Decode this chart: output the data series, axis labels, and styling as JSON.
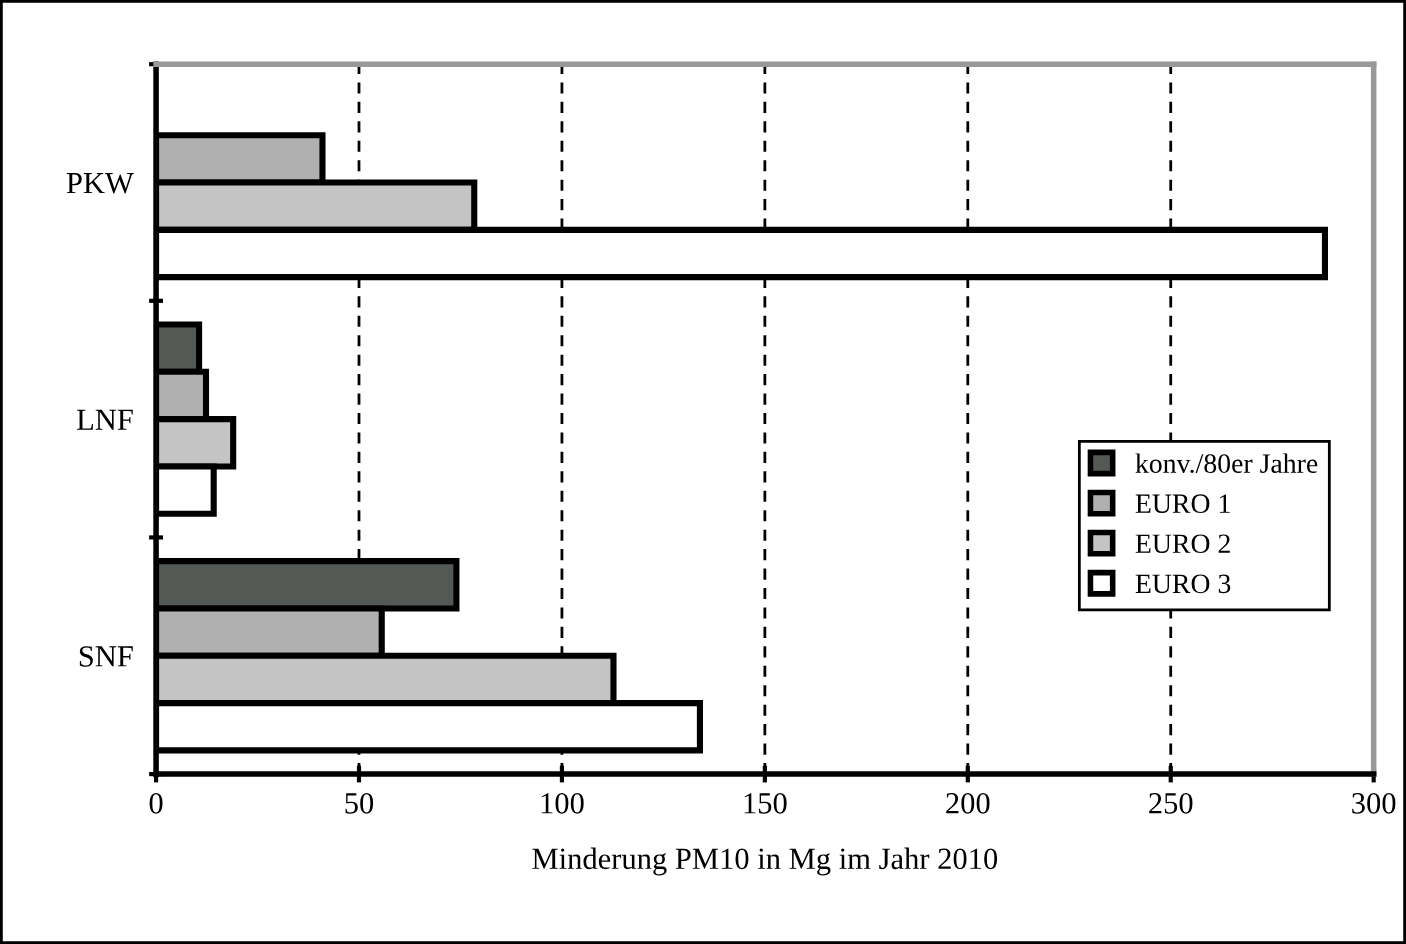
{
  "chart_data": {
    "type": "bar",
    "orientation": "horizontal",
    "categories": [
      "PKW",
      "LNF",
      "SNF"
    ],
    "xlabel": "Minderung PM10 in Mg im Jahr 2010",
    "xlim": [
      0,
      300
    ],
    "xticks": [
      0,
      50,
      100,
      150,
      200,
      250,
      300
    ],
    "grid": "x",
    "legend": "right",
    "series": [
      {
        "name": "konv./80er Jahre",
        "color": "#555955",
        "values": [
          null,
          10.6,
          74
        ]
      },
      {
        "name": "EURO 1",
        "color": "#b0b0b0",
        "values": [
          41,
          12.3,
          55.6
        ]
      },
      {
        "name": "EURO 2",
        "color": "#c4c4c4",
        "values": [
          78.4,
          19,
          112.7
        ]
      },
      {
        "name": "EURO 3",
        "color": "#ffffff",
        "values": [
          288,
          14.2,
          134
        ]
      }
    ]
  }
}
